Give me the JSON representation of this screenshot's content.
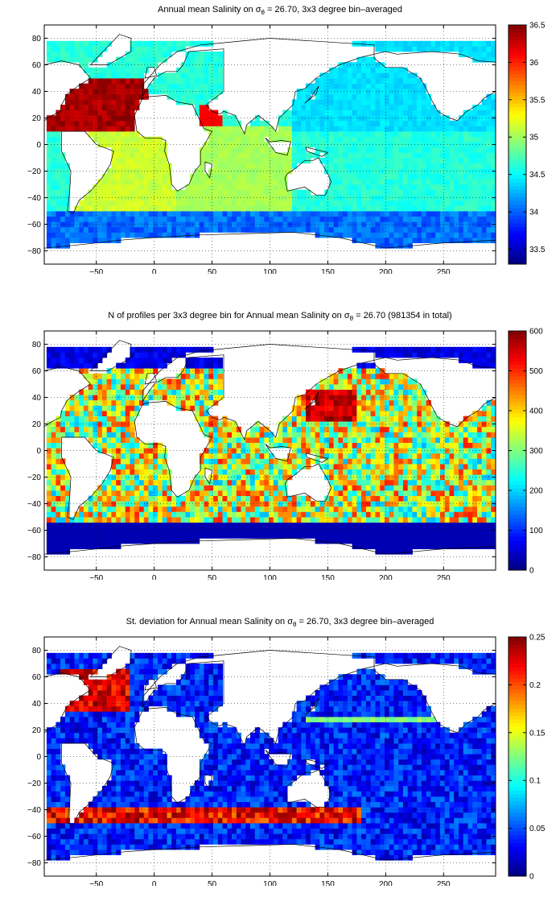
{
  "chart_data": [
    {
      "type": "heatmap",
      "title_pre": "Annual mean Salinity on",
      "title_sigma": "σ",
      "title_sub": "θ",
      "title_post": " = 26.70, 3x3 degree bin–averaged",
      "xlim": [
        -95,
        295
      ],
      "ylim": [
        -90,
        90
      ],
      "xticks": [
        -50,
        0,
        50,
        100,
        150,
        200,
        250
      ],
      "yticks": [
        -80,
        -60,
        -40,
        -20,
        0,
        20,
        40,
        60,
        80
      ],
      "grid": true,
      "colorbar": {
        "min": 33.3,
        "max": 36.5,
        "ticks": [
          33.5,
          34,
          34.5,
          35,
          35.5,
          36,
          36.5
        ]
      },
      "variable": "salinity"
    },
    {
      "type": "heatmap",
      "title_pre": "N of profiles per 3x3 degree bin for Annual mean Salinity on",
      "title_sigma": "σ",
      "title_sub": "θ",
      "title_post": " = 26.70 (981354 in total)",
      "xlim": [
        -95,
        295
      ],
      "ylim": [
        -90,
        90
      ],
      "xticks": [
        -50,
        0,
        50,
        100,
        150,
        200,
        250
      ],
      "yticks": [
        -80,
        -60,
        -40,
        -20,
        0,
        20,
        40,
        60,
        80
      ],
      "grid": true,
      "colorbar": {
        "min": 0,
        "max": 600,
        "ticks": [
          0,
          100,
          200,
          300,
          400,
          500,
          600
        ]
      },
      "variable": "count"
    },
    {
      "type": "heatmap",
      "title_pre": "St. deviation for Annual mean Salinity on",
      "title_sigma": "σ",
      "title_sub": "θ",
      "title_post": " = 26.70, 3x3 degree bin–averaged",
      "xlim": [
        -95,
        295
      ],
      "ylim": [
        -90,
        90
      ],
      "xticks": [
        -50,
        0,
        50,
        100,
        150,
        200,
        250
      ],
      "yticks": [
        -80,
        -60,
        -40,
        -20,
        0,
        20,
        40,
        60,
        80
      ],
      "grid": true,
      "colorbar": {
        "min": 0,
        "max": 0.25,
        "ticks": [
          0,
          0.05,
          0.1,
          0.15,
          0.2,
          0.25
        ]
      },
      "variable": "stdev"
    }
  ]
}
